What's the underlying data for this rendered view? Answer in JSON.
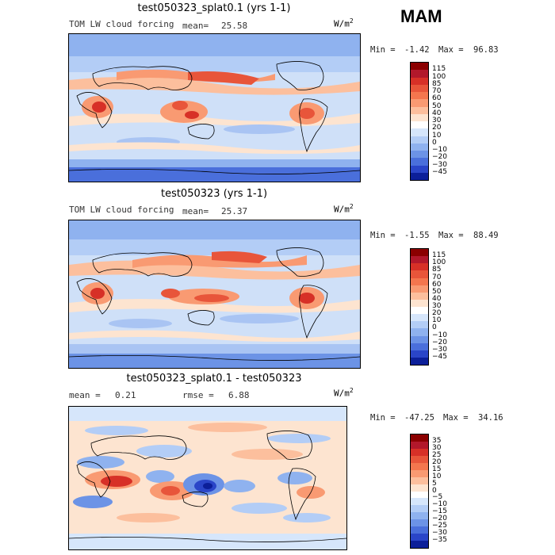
{
  "season": "MAM",
  "units": {
    "base": "W/m",
    "exp": "2"
  },
  "panels": [
    {
      "title": "test050323_splat0.1 (yrs 1-1)",
      "subtitle": "TOM LW cloud forcing",
      "mean_label": "mean=",
      "mean_value": "25.58",
      "min_label": "Min =",
      "min_value": "-1.42",
      "max_label": "Max =",
      "max_value": "96.83",
      "scale": "abs"
    },
    {
      "title": "test050323 (yrs 1-1)",
      "subtitle": "TOM LW cloud forcing",
      "mean_label": "mean=",
      "mean_value": "25.37",
      "min_label": "Min =",
      "min_value": "-1.55",
      "max_label": "Max =",
      "max_value": "88.49",
      "scale": "abs"
    },
    {
      "title": "test050323_splat0.1 - test050323",
      "mean_label": "mean =",
      "mean_value": "0.21",
      "rmse_label": "rmse =",
      "rmse_value": "6.88",
      "min_label": "Min =",
      "min_value": "-47.25",
      "max_label": "Max =",
      "max_value": "34.16",
      "scale": "diff"
    }
  ],
  "colorbars": {
    "abs": {
      "labels": [
        "115",
        "100",
        "85",
        "70",
        "60",
        "50",
        "40",
        "30",
        "20",
        "10",
        "0",
        "−10",
        "−20",
        "−30",
        "−45"
      ],
      "colors": [
        "#8b0000",
        "#b2182b",
        "#d73027",
        "#e8553a",
        "#f4764e",
        "#f99a72",
        "#fcbf9d",
        "#fde4d0",
        "#ffffff",
        "#d6e6fb",
        "#b3cdf6",
        "#8fb2ef",
        "#6c93e6",
        "#4a6fdb",
        "#2a45c8",
        "#0c1f99"
      ]
    },
    "diff": {
      "labels": [
        "35",
        "30",
        "25",
        "20",
        "15",
        "10",
        "5",
        "0",
        "−5",
        "−10",
        "−15",
        "−20",
        "−25",
        "−30",
        "−35"
      ],
      "colors": [
        "#8b0000",
        "#b2182b",
        "#d73027",
        "#e8553a",
        "#f4764e",
        "#f99a72",
        "#fcbf9d",
        "#fde4d0",
        "#ffffff",
        "#d6e6fb",
        "#b3cdf6",
        "#8fb2ef",
        "#6c93e6",
        "#4a6fdb",
        "#2a45c8",
        "#0c1f99"
      ]
    }
  },
  "chart_data": [
    {
      "type": "heatmap",
      "title": "test050323_splat0.1 (yrs 1-1)",
      "variable": "TOM LW cloud forcing",
      "units": "W/m2",
      "mean": 25.58,
      "min": -1.42,
      "max": 96.83,
      "contour_levels": [
        -45,
        -30,
        -20,
        -10,
        0,
        10,
        20,
        30,
        40,
        50,
        60,
        70,
        85,
        100,
        115
      ]
    },
    {
      "type": "heatmap",
      "title": "test050323 (yrs 1-1)",
      "variable": "TOM LW cloud forcing",
      "units": "W/m2",
      "mean": 25.37,
      "min": -1.55,
      "max": 88.49,
      "contour_levels": [
        -45,
        -30,
        -20,
        -10,
        0,
        10,
        20,
        30,
        40,
        50,
        60,
        70,
        85,
        100,
        115
      ]
    },
    {
      "type": "heatmap",
      "title": "test050323_splat0.1 - test050323",
      "units": "W/m2",
      "mean": 0.21,
      "rmse": 6.88,
      "min": -47.25,
      "max": 34.16,
      "contour_levels": [
        -35,
        -30,
        -25,
        -20,
        -15,
        -10,
        -5,
        0,
        5,
        10,
        15,
        20,
        25,
        30,
        35
      ]
    }
  ]
}
